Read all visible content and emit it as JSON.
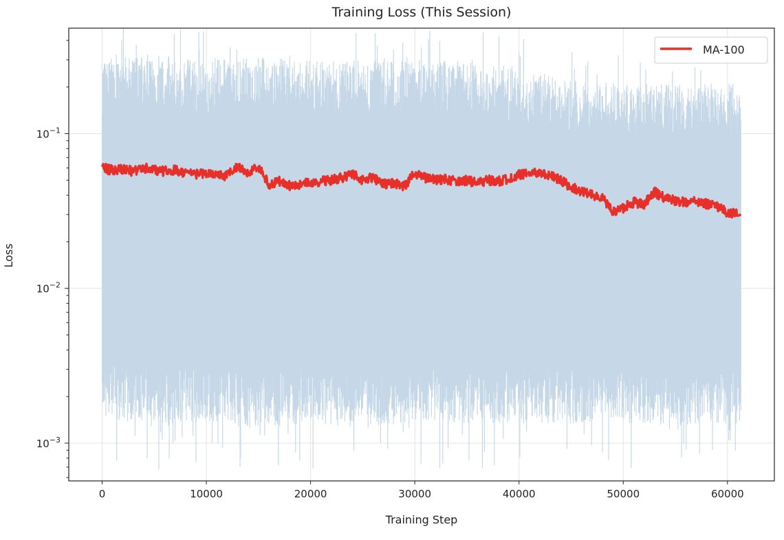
{
  "chart_data": {
    "type": "line",
    "title": "Training Loss (This Session)",
    "xlabel": "Training Step",
    "ylabel": "Loss",
    "yscale": "log",
    "xlim": [
      -3200,
      64500
    ],
    "ylim": [
      0.00057,
      0.48
    ],
    "xticks": [
      "0",
      "10000",
      "20000",
      "30000",
      "40000",
      "50000",
      "60000"
    ],
    "xtick_values": [
      0,
      10000,
      20000,
      30000,
      40000,
      50000,
      60000
    ],
    "yticks": [
      {
        "base": "10",
        "exp": "−1",
        "value": 0.1
      },
      {
        "base": "10",
        "exp": "−2",
        "value": 0.01
      },
      {
        "base": "10",
        "exp": "−3",
        "value": 0.001
      }
    ],
    "grid": true,
    "legend_position": "top-right",
    "raw_loss": {
      "color": "#c6d8e8",
      "x_end": 61300,
      "envelope_steps": [
        0,
        5000,
        10000,
        15000,
        20000,
        25000,
        30000,
        35000,
        40000,
        45000,
        50000,
        55000,
        61300
      ],
      "upper": [
        0.2,
        0.22,
        0.2,
        0.21,
        0.2,
        0.2,
        0.2,
        0.2,
        0.18,
        0.15,
        0.14,
        0.14,
        0.14
      ],
      "lower": [
        0.0032,
        0.003,
        0.003,
        0.0028,
        0.003,
        0.0028,
        0.003,
        0.003,
        0.003,
        0.003,
        0.003,
        0.0028,
        0.003
      ]
    },
    "series": [
      {
        "name": "MA-100",
        "color": "#e8302a",
        "x_step": 1000,
        "values": [
          0.06,
          0.058,
          0.059,
          0.057,
          0.06,
          0.058,
          0.057,
          0.058,
          0.056,
          0.055,
          0.055,
          0.054,
          0.053,
          0.062,
          0.056,
          0.06,
          0.047,
          0.049,
          0.046,
          0.047,
          0.048,
          0.049,
          0.05,
          0.052,
          0.055,
          0.05,
          0.052,
          0.047,
          0.048,
          0.046,
          0.055,
          0.052,
          0.05,
          0.051,
          0.049,
          0.05,
          0.048,
          0.05,
          0.049,
          0.051,
          0.054,
          0.055,
          0.056,
          0.053,
          0.05,
          0.045,
          0.042,
          0.04,
          0.038,
          0.031,
          0.033,
          0.036,
          0.035,
          0.042,
          0.038,
          0.037,
          0.036,
          0.037,
          0.035,
          0.034,
          0.031,
          0.03
        ]
      }
    ]
  }
}
